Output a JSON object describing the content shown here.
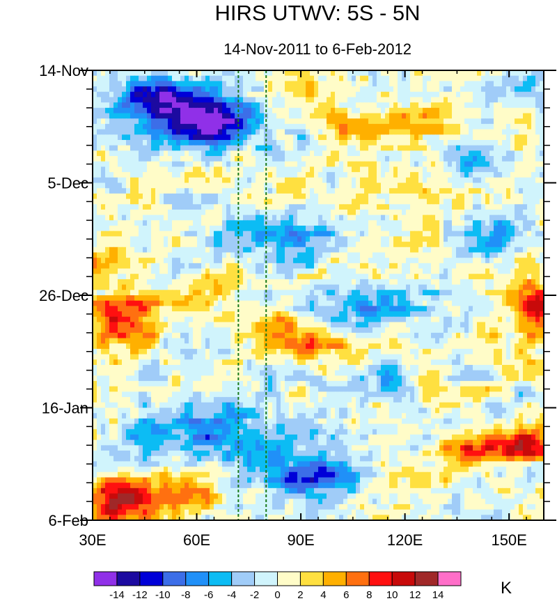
{
  "chart_data": {
    "type": "heatmap",
    "title": "HIRS UTWV: 5S - 5N",
    "subtitle": "14-Nov-2011 to 6-Feb-2012",
    "xlabel": "",
    "ylabel": "",
    "x_ticks": [
      "30E",
      "60E",
      "90E",
      "120E",
      "150E"
    ],
    "x_tick_values": [
      30,
      60,
      90,
      120,
      150
    ],
    "xlim": [
      30,
      160
    ],
    "y_ticks": [
      "14-Nov",
      "5-Dec",
      "26-Dec",
      "16-Jan",
      "6-Feb"
    ],
    "y_tick_days": [
      0,
      21,
      42,
      63,
      84
    ],
    "ylim_days": [
      0,
      84
    ],
    "reference_lines_lon": [
      72,
      80
    ],
    "colorbar": {
      "unit": "K",
      "labels": [
        "-14",
        "-12",
        "-10",
        "-8",
        "-6",
        "-4",
        "-2",
        "0",
        "2",
        "4",
        "6",
        "8",
        "10",
        "12",
        "14"
      ],
      "levels": [
        -14,
        -12,
        -10,
        -8,
        -6,
        -4,
        -2,
        0,
        2,
        4,
        6,
        8,
        10,
        12,
        14
      ],
      "colors": [
        "#9030e8",
        "#1c0aa0",
        "#0000d8",
        "#3c6ee8",
        "#2090f8",
        "#0cbcf4",
        "#a0ccf8",
        "#d0f4fc",
        "#fffcc8",
        "#ffe040",
        "#ffb000",
        "#ff7010",
        "#ff1010",
        "#c80a0a",
        "#a02828",
        "#ff6ec8"
      ]
    },
    "features": [
      {
        "lon": 58,
        "day": 7.5,
        "sig_lon": 12,
        "sig_day": 3.5,
        "value": -11
      },
      {
        "lon": 66,
        "day": 11,
        "sig_lon": 9,
        "sig_day": 2.2,
        "value": -9
      },
      {
        "lon": 47,
        "day": 5.5,
        "sig_lon": 8,
        "sig_day": 2.5,
        "value": -7
      },
      {
        "lon": 87,
        "day": 31,
        "sig_lon": 14,
        "sig_day": 3,
        "value": -6
      },
      {
        "lon": 100,
        "day": 44,
        "sig_lon": 18,
        "sig_day": 3,
        "value": -5
      },
      {
        "lon": 65,
        "day": 68,
        "sig_lon": 16,
        "sig_day": 4.5,
        "value": -7
      },
      {
        "lon": 92,
        "day": 76,
        "sig_lon": 9,
        "sig_day": 3,
        "value": -9
      },
      {
        "lon": 140,
        "day": 18,
        "sig_lon": 6,
        "sig_day": 3,
        "value": -5
      },
      {
        "lon": 152,
        "day": 4,
        "sig_lon": 6,
        "sig_day": 2.5,
        "value": -4
      },
      {
        "lon": 148,
        "day": 31,
        "sig_lon": 7,
        "sig_day": 3,
        "value": -4
      },
      {
        "lon": 118,
        "day": 58,
        "sig_lon": 6,
        "sig_day": 3,
        "value": -4
      },
      {
        "lon": 38,
        "day": 46,
        "sig_lon": 7,
        "sig_day": 4,
        "value": 8
      },
      {
        "lon": 58,
        "day": 43,
        "sig_lon": 7,
        "sig_day": 2.5,
        "value": 5
      },
      {
        "lon": 82,
        "day": 47,
        "sig_lon": 6,
        "sig_day": 2,
        "value": 7
      },
      {
        "lon": 94,
        "day": 51,
        "sig_lon": 10,
        "sig_day": 2.5,
        "value": 6
      },
      {
        "lon": 115,
        "day": 10,
        "sig_lon": 14,
        "sig_day": 2,
        "value": 7
      },
      {
        "lon": 86,
        "day": 2,
        "sig_lon": 6,
        "sig_day": 2.5,
        "value": 4
      },
      {
        "lon": 36,
        "day": 81,
        "sig_lon": 7,
        "sig_day": 3,
        "value": 11
      },
      {
        "lon": 52,
        "day": 79,
        "sig_lon": 9,
        "sig_day": 3,
        "value": 5
      },
      {
        "lon": 145,
        "day": 71,
        "sig_lon": 12,
        "sig_day": 1.8,
        "value": 10
      },
      {
        "lon": 158,
        "day": 69,
        "sig_lon": 4,
        "sig_day": 2,
        "value": 8
      },
      {
        "lon": 157,
        "day": 44,
        "sig_lon": 4,
        "sig_day": 4,
        "value": 10
      },
      {
        "lon": 33,
        "day": 36,
        "sig_lon": 4,
        "sig_day": 2,
        "value": 5
      },
      {
        "lon": 124,
        "day": 57,
        "sig_lon": 5,
        "sig_day": 2,
        "value": 5
      },
      {
        "lon": 44,
        "day": 21,
        "sig_lon": 5,
        "sig_day": 2,
        "value": 3
      },
      {
        "lon": 106,
        "day": 26,
        "sig_lon": 7,
        "sig_day": 2,
        "value": 3
      }
    ]
  }
}
